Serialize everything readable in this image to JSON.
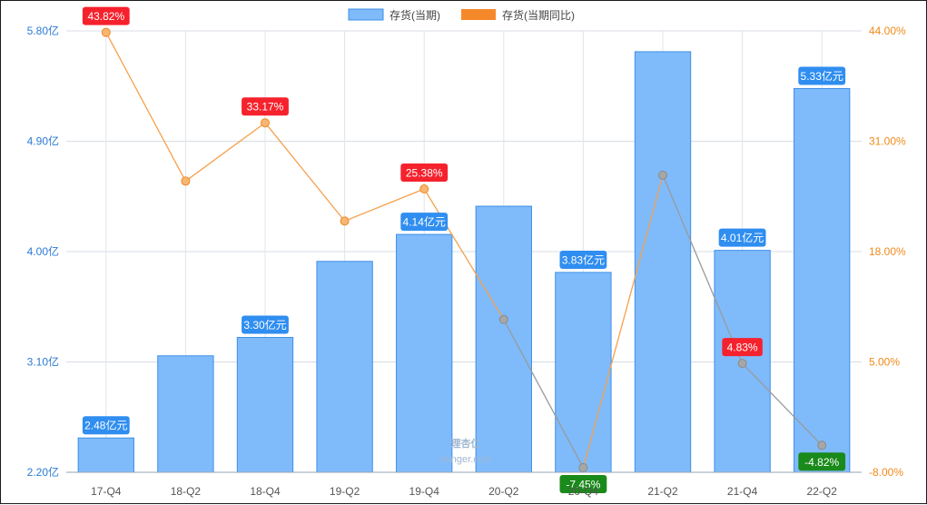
{
  "chart_data": {
    "type": "bar",
    "categories": [
      "17-Q4",
      "18-Q2",
      "18-Q4",
      "19-Q2",
      "19-Q4",
      "20-Q2",
      "20-Q4",
      "21-Q2",
      "21-Q4",
      "22-Q2"
    ],
    "series": [
      {
        "name": "存货(当期)",
        "type": "bar",
        "axis": "left",
        "color": "#7fbbfb",
        "values": [
          2.48,
          3.15,
          3.3,
          3.92,
          4.14,
          4.37,
          3.83,
          5.63,
          4.01,
          5.33
        ],
        "data_labels": [
          "2.48亿元",
          "",
          "3.30亿元",
          "",
          "4.14亿元",
          "",
          "3.83亿元",
          "",
          "4.01亿元",
          "5.33亿元"
        ]
      },
      {
        "name": "存货(当期同比)",
        "type": "line",
        "axis": "right",
        "color": "#f6a04d",
        "values": [
          43.82,
          26.3,
          33.17,
          21.6,
          25.38,
          10.0,
          -7.45,
          27.0,
          4.83,
          -4.82
        ],
        "data_labels": [
          "43.82%",
          "",
          "33.17%",
          "",
          "25.38%",
          "",
          "-7.45%",
          "",
          "4.83%",
          "-4.82%"
        ]
      }
    ],
    "left_axis": {
      "min": 2.2,
      "max": 5.8,
      "ticks": [
        "2.20亿",
        "3.10亿",
        "4.00亿",
        "4.90亿",
        "5.80亿"
      ]
    },
    "right_axis": {
      "min": -8,
      "max": 44,
      "ticks": [
        "-8.00%",
        "5.00%",
        "18.00%",
        "31.00%",
        "44.00%"
      ]
    },
    "legend_position": "top-center",
    "grid": true,
    "watermark": {
      "cn": "理杏仁",
      "en": "lixinger.com"
    }
  },
  "colors": {
    "bar_fill": "#7fbbfb",
    "bar_stroke": "#3d8fe6",
    "line": "#f6a04d",
    "line_down": "#9a9a9a",
    "left_axis": "#2b7bd6",
    "right_axis": "#f08a1c",
    "label_bar": "#2f8ef0",
    "label_up": "#f5222d",
    "label_down": "#1a8a1a"
  }
}
